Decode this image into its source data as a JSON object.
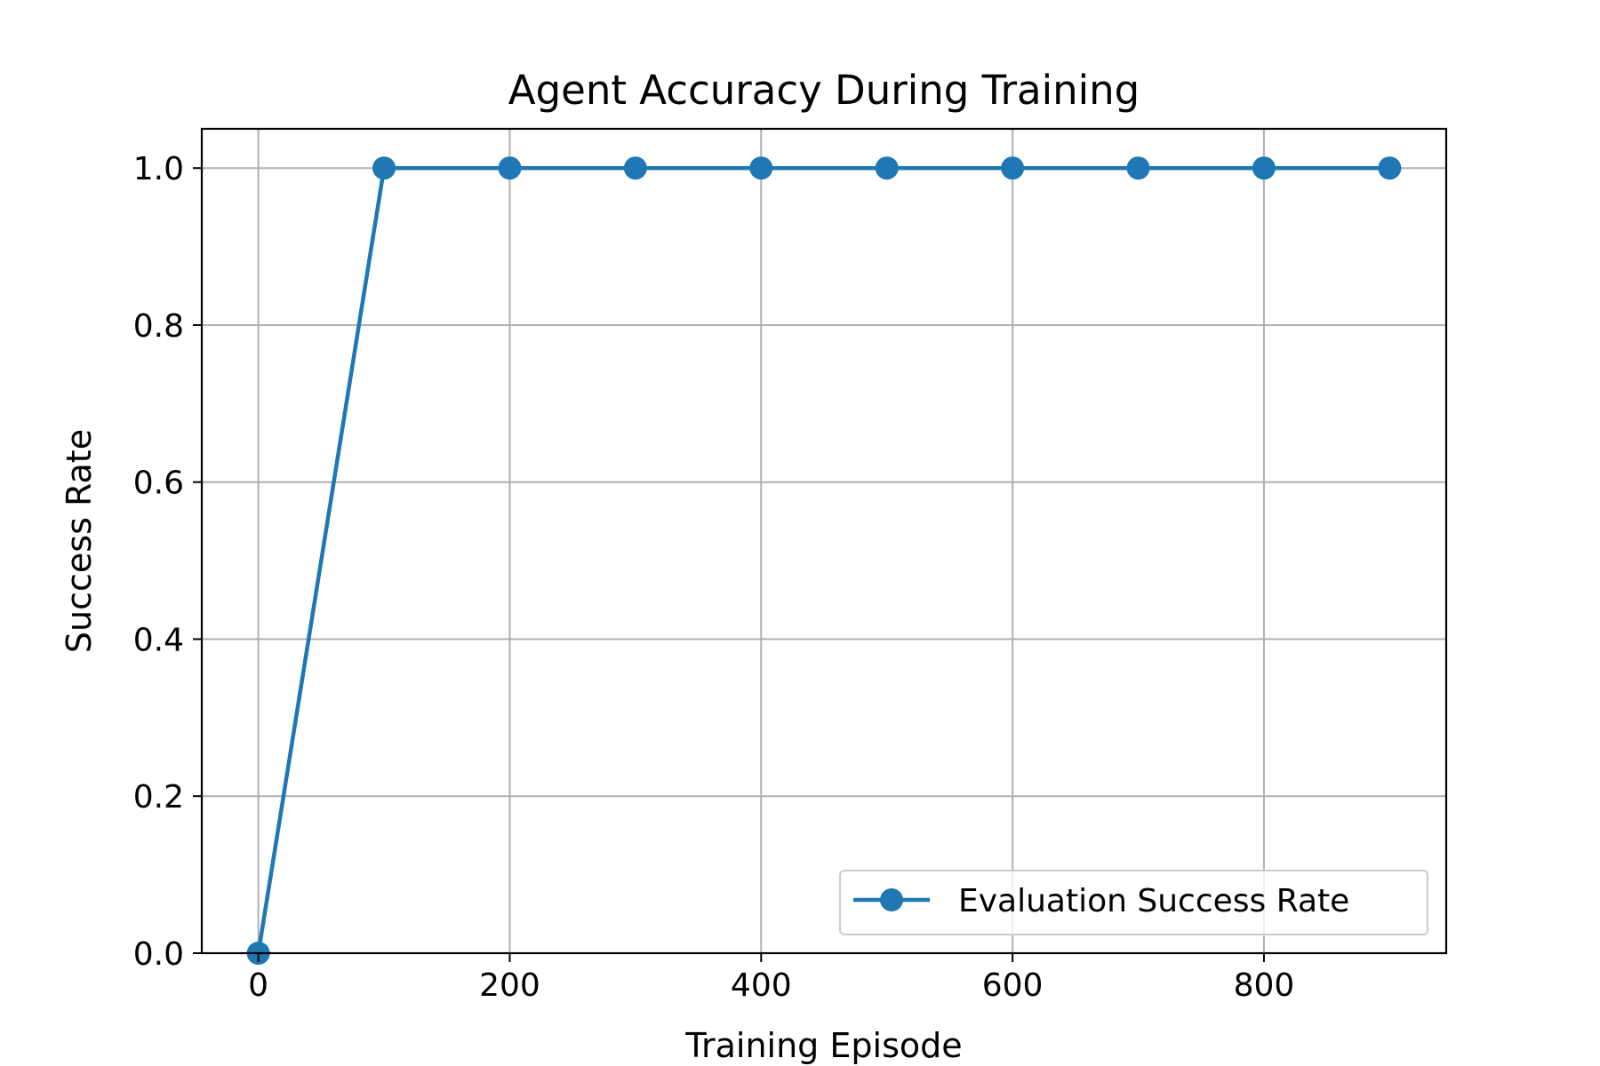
{
  "chart_data": {
    "type": "line",
    "title": "Agent Accuracy During Training",
    "xlabel": "Training Episode",
    "ylabel": "Success Rate",
    "xlim": [
      -45,
      945
    ],
    "ylim": [
      0.0,
      1.05
    ],
    "xticks": [
      0,
      200,
      400,
      600,
      800
    ],
    "xtick_labels": [
      "0",
      "200",
      "400",
      "600",
      "800"
    ],
    "yticks": [
      0.0,
      0.2,
      0.4,
      0.6,
      0.8,
      1.0
    ],
    "ytick_labels": [
      "0.0",
      "0.2",
      "0.4",
      "0.6",
      "0.8",
      "1.0"
    ],
    "grid": true,
    "legend_position": "lower-right",
    "series": [
      {
        "name": "Evaluation Success Rate",
        "color": "#1f77b4",
        "marker": "circle",
        "x": [
          0,
          100,
          200,
          300,
          400,
          500,
          600,
          700,
          800,
          900
        ],
        "y": [
          0.0,
          1.0,
          1.0,
          1.0,
          1.0,
          1.0,
          1.0,
          1.0,
          1.0,
          1.0
        ]
      }
    ]
  }
}
